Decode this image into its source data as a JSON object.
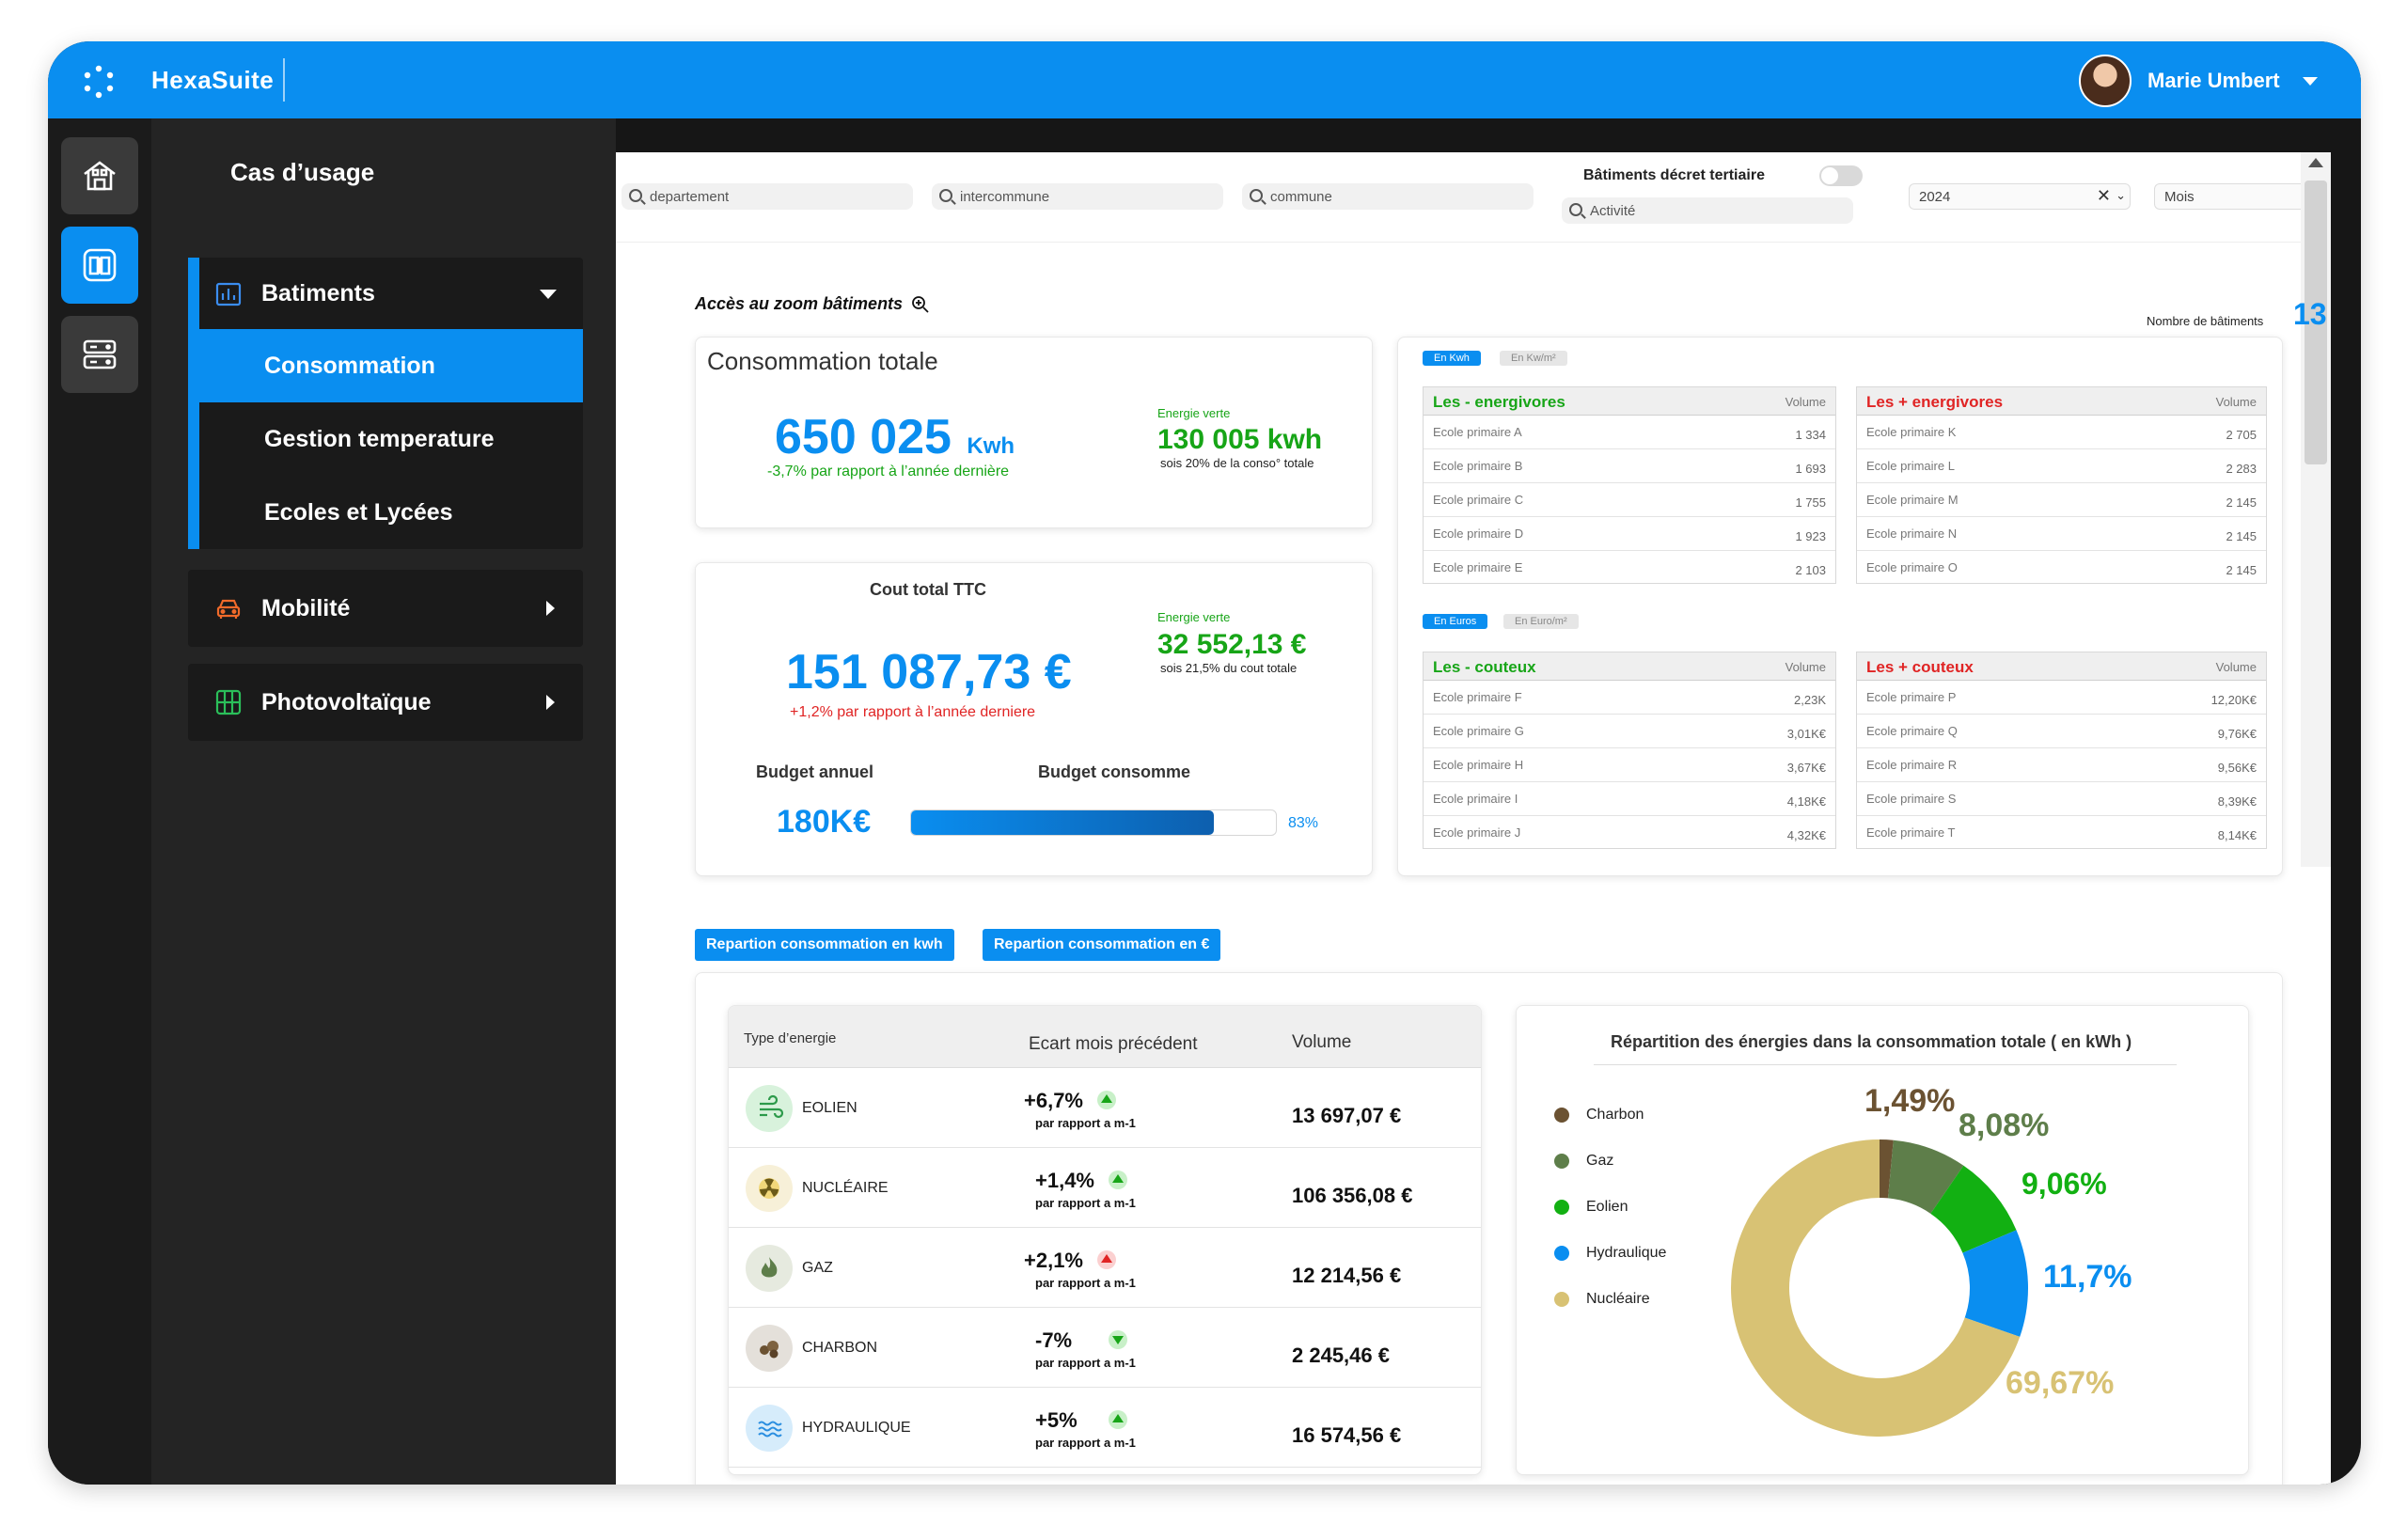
{
  "app": {
    "brand": "HexaSuite",
    "user_name": "Marie Umbert"
  },
  "nav": {
    "title": "Cas d’usage",
    "groups": [
      {
        "label": "Batiments",
        "icon": "building-chart-icon",
        "expanded": true,
        "items": [
          {
            "label": "Consommation",
            "active": true
          },
          {
            "label": "Gestion temperature"
          },
          {
            "label": "Ecoles et Lycées"
          }
        ]
      },
      {
        "label": "Mobilité",
        "icon": "car-icon"
      },
      {
        "label": "Photovoltaïque",
        "icon": "solar-panel-icon"
      }
    ]
  },
  "filters": {
    "departement": "departement",
    "intercommune": "intercommune",
    "commune": "commune",
    "activite": "Activité",
    "decret_label": "Bâtiments décret tertiaire",
    "year": "2024",
    "period": "Mois"
  },
  "zoom_link": "Accès au zoom bâtiments",
  "buildings_count": {
    "label": "Nombre de bâtiments",
    "value": "13"
  },
  "conso_card": {
    "title": "Consommation totale",
    "value": "650 025",
    "unit": "Kwh",
    "delta": "-3,7% par rapport à l’année dernière",
    "green_label": "Energie verte",
    "green_value": "130 005 kwh",
    "green_sub": "sois 20% de la conso° totale"
  },
  "cost_card": {
    "title": "Cout total TTC",
    "value": "151 087,73 €",
    "delta": "+1,2% par rapport à l’année derniere",
    "green_label": "Energie verte",
    "green_value": "32 552,13 €",
    "green_sub": "sois 21,5% du cout totale",
    "budget_label": "Budget annuel",
    "budget_value": "180K€",
    "consumed_label": "Budget consomme",
    "consumed_pct": "83%",
    "consumed_fraction": 0.83
  },
  "rank_kwh": {
    "tab_on": "En Kwh",
    "tab_off": "En Kw/m²",
    "volume_label": "Volume",
    "low": {
      "title": "Les - energivores",
      "rows": [
        {
          "name": "Ecole primaire A",
          "value": "1 334"
        },
        {
          "name": "Ecole primaire B",
          "value": "1 693"
        },
        {
          "name": "Ecole primaire C",
          "value": "1 755"
        },
        {
          "name": "Ecole primaire D",
          "value": "1 923"
        },
        {
          "name": "Ecole primaire E",
          "value": "2 103"
        }
      ]
    },
    "high": {
      "title": "Les + energivores",
      "rows": [
        {
          "name": "Ecole primaire K",
          "value": "2 705"
        },
        {
          "name": "Ecole primaire L",
          "value": "2 283"
        },
        {
          "name": "Ecole primaire M",
          "value": "2 145"
        },
        {
          "name": "Ecole primaire N",
          "value": "2 145"
        },
        {
          "name": "Ecole primaire O",
          "value": "2 145"
        }
      ]
    }
  },
  "rank_eur": {
    "tab_on": "En Euros",
    "tab_off": "En Euro/m²",
    "volume_label": "Volume",
    "low": {
      "title": "Les - couteux",
      "rows": [
        {
          "name": "Ecole primaire F",
          "value": "2,23K"
        },
        {
          "name": "Ecole primaire G",
          "value": "3,01K€"
        },
        {
          "name": "Ecole primaire H",
          "value": "3,67K€"
        },
        {
          "name": "Ecole primaire I",
          "value": "4,18K€"
        },
        {
          "name": "Ecole primaire J",
          "value": "4,32K€"
        }
      ]
    },
    "high": {
      "title": "Les + couteux",
      "rows": [
        {
          "name": "Ecole primaire P",
          "value": "12,20K€"
        },
        {
          "name": "Ecole primaire Q",
          "value": "9,76K€"
        },
        {
          "name": "Ecole primaire R",
          "value": "9,56K€"
        },
        {
          "name": "Ecole primaire S",
          "value": "8,39K€"
        },
        {
          "name": "Ecole primaire T",
          "value": "8,14K€"
        }
      ]
    }
  },
  "tabs": {
    "kwh": "Repartion consommation en kwh",
    "eur": "Repartion consommation en €"
  },
  "energy_table": {
    "headers": {
      "type": "Type d’energie",
      "ecart": "Ecart mois précédent",
      "volume": "Volume"
    },
    "sub": "par rapport a m-1",
    "rows": [
      {
        "name": "EOLIEN",
        "icon": "wind-icon",
        "pct": "+6,7%",
        "trend": "up",
        "value": "13 697,07 €"
      },
      {
        "name": "NUCLÉAIRE",
        "icon": "nuclear-icon",
        "pct": "+1,4%",
        "trend": "up",
        "value": "106 356,08 €"
      },
      {
        "name": "GAZ",
        "icon": "flame-icon",
        "pct": "+2,1%",
        "trend": "up-red",
        "value": "12 214,56 €"
      },
      {
        "name": "CHARBON",
        "icon": "coal-icon",
        "pct": "-7%",
        "trend": "down",
        "value": "2 245,46 €"
      },
      {
        "name": "HYDRAULIQUE",
        "icon": "water-icon",
        "pct": "+5%",
        "trend": "up",
        "value": "16 574,56 €"
      }
    ]
  },
  "chart_data": {
    "type": "pie",
    "title": "Répartition des énergies dans la consommation totale ( en kWh )",
    "legend_position": "left",
    "categories": [
      "Charbon",
      "Gaz",
      "Eolien",
      "Hydraulique",
      "Nucléaire"
    ],
    "values": [
      1.49,
      8.08,
      9.06,
      11.7,
      69.67
    ],
    "labels": [
      "1,49%",
      "8,08%",
      "9,06%",
      "11,7%",
      "69,67%"
    ],
    "colors": [
      "#6b5232",
      "#5e7e4a",
      "#12b012",
      "#0a8ef0",
      "#d8c274"
    ]
  }
}
